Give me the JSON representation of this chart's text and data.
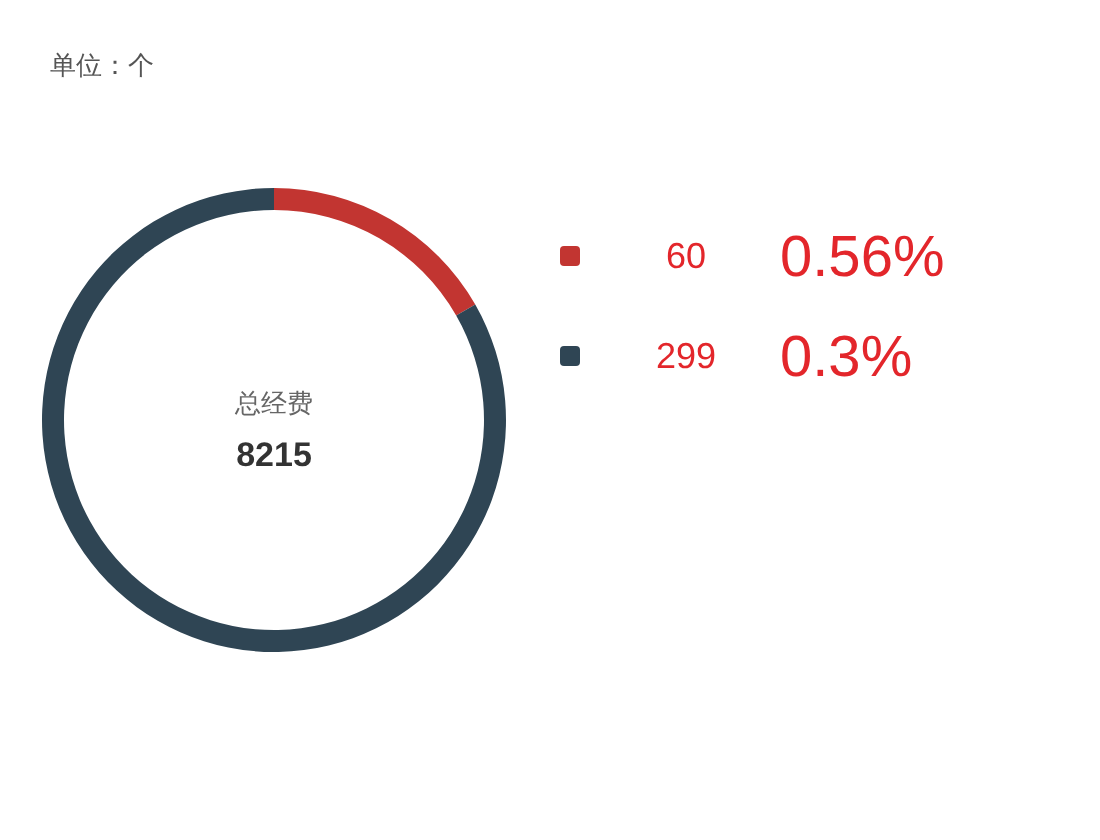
{
  "chart_data": {
    "type": "donut",
    "title": "单位：个",
    "categories": [
      "60",
      "299"
    ],
    "values": [
      60,
      299
    ],
    "colors": [
      "#c23531",
      "#2f4554"
    ],
    "legend": "right",
    "annotations": [
      "总经费",
      "8215",
      "0.56%",
      "0.3%"
    ]
  }
}
